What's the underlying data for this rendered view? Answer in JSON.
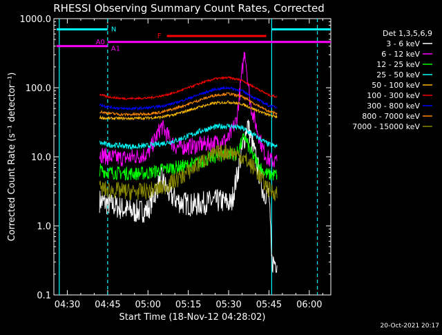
{
  "chart_data": {
    "type": "line",
    "title": "RHESSI Observing Summary Count Rates, Corrected",
    "xlabel": "Start Time (18-Nov-12 04:28:02)",
    "ylabel": "Corrected Count Rate (s⁻¹ detector⁻¹)",
    "y_scale": "log",
    "ylim": [
      0.1,
      1000
    ],
    "xlim": [
      "04:25",
      "06:08"
    ],
    "x_ticks": [
      "04:30",
      "04:45",
      "05:00",
      "05:15",
      "05:30",
      "05:45",
      "06:00"
    ],
    "y_ticks": [
      "0.1",
      "1.0",
      "10.0",
      "100.0",
      "1000.0"
    ],
    "detectors": "Det 1,3,5,6,9",
    "footer_date": "20-Oct-2021 20:17",
    "series": [
      {
        "name": "3 - 6 keV",
        "color": "#ffffff",
        "x": [
          "04:42",
          "04:45",
          "04:50",
          "04:55",
          "05:00",
          "05:05",
          "05:08",
          "05:12",
          "05:17",
          "05:22",
          "05:27",
          "05:31",
          "05:34",
          "05:37",
          "05:40",
          "05:43",
          "05:45",
          "05:46",
          "05:48"
        ],
        "values": [
          2.3,
          2.1,
          1.8,
          1.6,
          1.7,
          5,
          2.8,
          2.2,
          2.0,
          2.2,
          2.3,
          2.1,
          8,
          30,
          10,
          3,
          3,
          0.3,
          0.3
        ]
      },
      {
        "name": "6 - 12 keV",
        "color": "#ff00ff",
        "x": [
          "04:42",
          "04:45",
          "04:50",
          "04:55",
          "05:00",
          "05:05",
          "05:10",
          "05:15",
          "05:20",
          "05:25",
          "05:30",
          "05:33",
          "05:36",
          "05:38",
          "05:40",
          "05:43",
          "05:45",
          "05:48"
        ],
        "values": [
          11,
          10,
          9.5,
          10,
          11,
          28,
          14,
          14,
          15,
          16,
          18,
          35,
          360,
          60,
          30,
          12,
          9,
          8.5
        ]
      },
      {
        "name": "12 - 25 keV",
        "color": "#00ff00",
        "x": [
          "04:42",
          "04:45",
          "04:50",
          "04:55",
          "05:00",
          "05:05",
          "05:10",
          "05:15",
          "05:20",
          "05:25",
          "05:30",
          "05:33",
          "05:36",
          "05:38",
          "05:40",
          "05:43",
          "05:45",
          "05:48"
        ],
        "values": [
          6.5,
          6,
          5.8,
          5.7,
          5.8,
          6.5,
          7,
          7.5,
          8.5,
          10,
          11,
          11,
          20,
          12,
          9,
          6,
          5.5,
          5.5
        ]
      },
      {
        "name": "25 - 50 keV",
        "color": "#00ffff",
        "x": [
          "04:42",
          "04:45",
          "04:50",
          "04:55",
          "05:00",
          "05:05",
          "05:10",
          "05:15",
          "05:20",
          "05:25",
          "05:30",
          "05:35",
          "05:40",
          "05:45",
          "05:48"
        ],
        "values": [
          16,
          15,
          14.5,
          14,
          14.5,
          15.5,
          17,
          20,
          24,
          27,
          28,
          26,
          20,
          15,
          14
        ]
      },
      {
        "name": "50 - 100 keV",
        "color": "#ffbb00",
        "x": [
          "04:42",
          "04:45",
          "04:50",
          "04:55",
          "05:00",
          "05:05",
          "05:10",
          "05:15",
          "05:20",
          "05:25",
          "05:30",
          "05:35",
          "05:40",
          "05:45",
          "05:48"
        ],
        "values": [
          37,
          36,
          36,
          36,
          36.5,
          37.5,
          41,
          47,
          54,
          60,
          62,
          58,
          48,
          40,
          38
        ]
      },
      {
        "name": "100 - 300 keV",
        "color": "#ff0000",
        "x": [
          "04:42",
          "04:45",
          "04:50",
          "04:55",
          "05:00",
          "05:05",
          "05:10",
          "05:15",
          "05:20",
          "05:25",
          "05:30",
          "05:35",
          "05:40",
          "05:45",
          "05:48"
        ],
        "values": [
          80,
          74,
          70,
          70,
          71,
          76,
          85,
          100,
          118,
          135,
          140,
          128,
          100,
          78,
          74
        ]
      },
      {
        "name": "300 - 800 keV",
        "color": "#0000ff",
        "x": [
          "04:42",
          "04:45",
          "04:50",
          "04:55",
          "05:00",
          "05:05",
          "05:10",
          "05:15",
          "05:20",
          "05:25",
          "05:30",
          "05:35",
          "05:40",
          "05:45",
          "05:48"
        ],
        "values": [
          57,
          53,
          50,
          50,
          51,
          54,
          60,
          70,
          82,
          95,
          100,
          90,
          70,
          55,
          52
        ]
      },
      {
        "name": "800 - 7000 keV",
        "color": "#ff8800",
        "x": [
          "04:42",
          "04:45",
          "04:50",
          "04:55",
          "05:00",
          "05:05",
          "05:10",
          "05:15",
          "05:20",
          "05:25",
          "05:30",
          "05:35",
          "05:40",
          "05:45",
          "05:48"
        ],
        "values": [
          45,
          43,
          41,
          41,
          42,
          44,
          50,
          58,
          68,
          78,
          82,
          74,
          58,
          45,
          43
        ]
      },
      {
        "name": "7000 - 15000 keV",
        "color": "#888800",
        "x": [
          "04:42",
          "04:45",
          "04:50",
          "04:55",
          "05:00",
          "05:05",
          "05:10",
          "05:15",
          "05:20",
          "05:25",
          "05:30",
          "05:35",
          "05:40",
          "05:45",
          "05:48"
        ],
        "values": [
          3.5,
          3.3,
          3.2,
          3.1,
          3.2,
          3.5,
          4.5,
          6,
          8.5,
          11,
          12,
          10,
          6.5,
          3.3,
          3
        ]
      }
    ],
    "markers": [
      {
        "label": "N",
        "color": "#00ffff",
        "value": 700,
        "segments": [
          [
            "04:26",
            "04:45"
          ],
          [
            "05:46",
            "06:08"
          ]
        ]
      },
      {
        "label": "F",
        "color": "#ff0000",
        "value": 560,
        "segments": [
          [
            "05:07",
            "05:44"
          ]
        ]
      },
      {
        "label": "A1",
        "color": "#ff00ff",
        "value": 460,
        "segments": [
          [
            "04:45",
            "06:08"
          ]
        ]
      },
      {
        "label": "A0",
        "color": "#ff00ff",
        "value": 400,
        "segments": [
          [
            "04:26",
            "04:45"
          ]
        ]
      }
    ],
    "vlines": [
      {
        "x": "04:27",
        "color": "#00ffff",
        "style": "solid"
      },
      {
        "x": "04:45",
        "color": "#00ffff",
        "style": "dashed"
      },
      {
        "x": "05:46",
        "color": "#00ffff",
        "style": "solid"
      },
      {
        "x": "06:03",
        "color": "#00ffff",
        "style": "dashed"
      }
    ]
  }
}
